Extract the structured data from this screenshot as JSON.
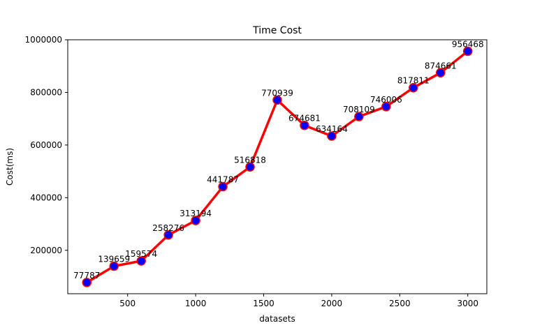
{
  "chart_data": {
    "type": "line",
    "title": "Time Cost",
    "xlabel": "datasets",
    "ylabel": "Cost(ms)",
    "xlim": [
      60,
      3140
    ],
    "ylim": [
      35000,
      1000000
    ],
    "x_ticks": [
      500,
      1000,
      1500,
      2000,
      2500,
      3000
    ],
    "y_ticks": [
      200000,
      400000,
      600000,
      800000,
      1000000
    ],
    "x_tick_labels": [
      "500",
      "1000",
      "1500",
      "2000",
      "2500",
      "3000"
    ],
    "y_tick_labels": [
      "200000",
      "400000",
      "600000",
      "800000",
      "1000000"
    ],
    "grid": false,
    "series": [
      {
        "x": [
          200,
          400,
          600,
          800,
          1000,
          1200,
          1400,
          1600,
          1800,
          2000,
          2200,
          2400,
          2600,
          2800,
          3000
        ],
        "values": [
          77787,
          139659,
          159574,
          258276,
          313194,
          441787,
          516818,
          770939,
          674681,
          634164,
          708109,
          746006,
          817811,
          874661,
          956468
        ],
        "data_labels": [
          "77787",
          "139659",
          "159574",
          "258276",
          "313194",
          "441787",
          "516818",
          "770939",
          "674681",
          "634164",
          "708109",
          "746006",
          "817811",
          "874661",
          "956468"
        ],
        "line_color": "#ff0000",
        "marker_color": "#0000ff",
        "marker_edge_color": "#ff0000"
      }
    ]
  }
}
